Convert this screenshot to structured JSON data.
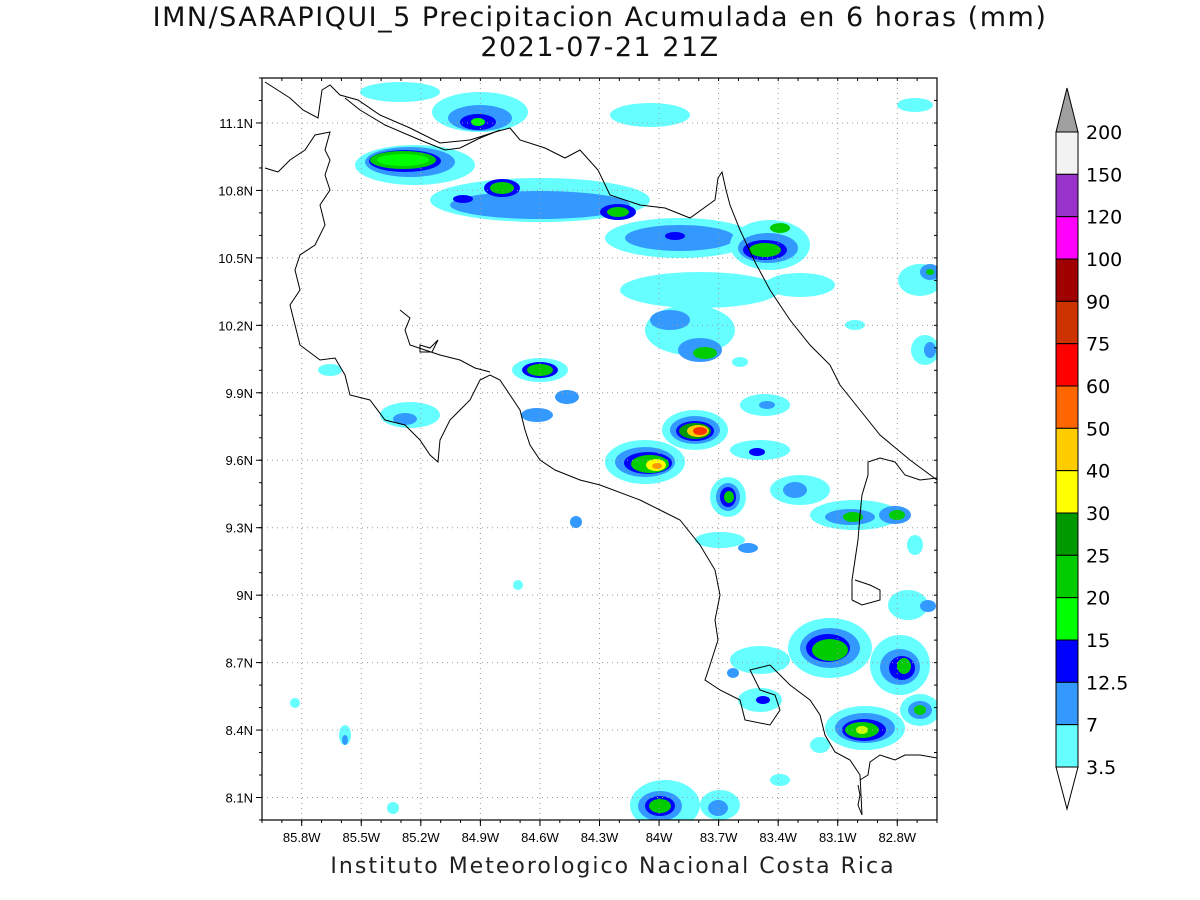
{
  "title": {
    "line1": "IMN/SARAPIQUI_5 Precipitacion Acumulada en 6 horas (mm)",
    "line2": "2021-07-21 21Z"
  },
  "footer": "Instituto Meteorologico Nacional Costa Rica",
  "map": {
    "lon_range": [
      -86.0,
      -82.6
    ],
    "lat_range": [
      8.0,
      11.3
    ],
    "x_ticks": [
      "85.8W",
      "85.5W",
      "85.2W",
      "84.9W",
      "84.6W",
      "84.3W",
      "84W",
      "83.7W",
      "83.4W",
      "83.1W",
      "82.8W"
    ],
    "y_ticks": [
      "11.1N",
      "10.8N",
      "10.5N",
      "10.2N",
      "9.9N",
      "9.6N",
      "9.3N",
      "9N",
      "8.7N",
      "8.4N",
      "8.1N"
    ],
    "grid": true
  },
  "colorbar": {
    "labels": [
      "200",
      "150",
      "120",
      "100",
      "90",
      "75",
      "60",
      "50",
      "40",
      "30",
      "25",
      "20",
      "15",
      "12.5",
      "7",
      "3.5"
    ],
    "colors": [
      "#a0a0a0",
      "#f2f2f2",
      "#9933cc",
      "#ff00ff",
      "#a00000",
      "#cc3300",
      "#ff0000",
      "#ff6600",
      "#ffcc00",
      "#ffff00",
      "#009900",
      "#00cc00",
      "#00ff00",
      "#0000ff",
      "#3399ff",
      "#66ffff"
    ]
  }
}
